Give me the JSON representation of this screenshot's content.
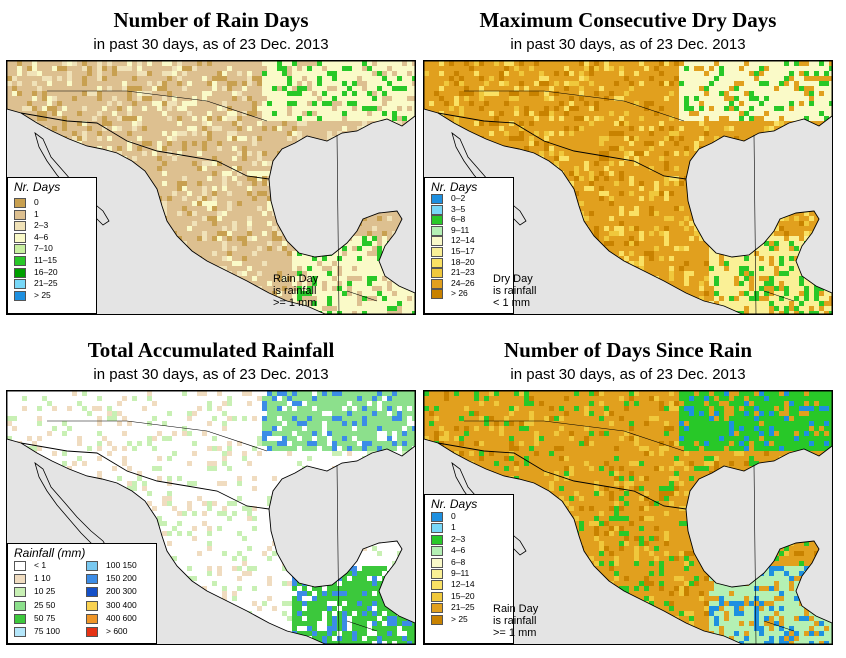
{
  "panels": [
    {
      "title": "Number of Rain Days",
      "subtitle": "in past 30 days, as of  23 Dec. 2013",
      "legend_title": "Nr. Days",
      "legend": [
        {
          "label": "0",
          "color": "#c8a050"
        },
        {
          "label": "1",
          "color": "#ddc090"
        },
        {
          "label": "2–3",
          "color": "#f0e2b8"
        },
        {
          "label": "4–6",
          "color": "#fafac8"
        },
        {
          "label": "7–10",
          "color": "#c8f0a0"
        },
        {
          "label": "11–15",
          "color": "#28c828"
        },
        {
          "label": "16–20",
          "color": "#00a000"
        },
        {
          "label": "21–25",
          "color": "#78d8f8"
        },
        {
          "label": "> 25",
          "color": "#1e90e0"
        }
      ],
      "note": [
        "Rain Day",
        "is rainfall",
        ">= 1 mm"
      ]
    },
    {
      "title": "Maximum Consecutive Dry Days",
      "subtitle": "in past 30 days, as of  23 Dec. 2013",
      "legend_title": "Nr. Days",
      "legend": [
        {
          "label": "0–2",
          "color": "#1e90e0"
        },
        {
          "label": "3–5",
          "color": "#78d8f8"
        },
        {
          "label": "6–8",
          "color": "#28c828"
        },
        {
          "label": "9–11",
          "color": "#b4f0b4"
        },
        {
          "label": "12–14",
          "color": "#fafac8"
        },
        {
          "label": "15–17",
          "color": "#faf096"
        },
        {
          "label": "18–20",
          "color": "#fae164"
        },
        {
          "label": "21–23",
          "color": "#f0c83c"
        },
        {
          "label": "24–26",
          "color": "#e1a01e"
        },
        {
          "label": "> 26",
          "color": "#c88200"
        }
      ],
      "note": [
        "Dry Day",
        "is rainfall",
        "< 1 mm"
      ]
    },
    {
      "title": "Total Accumulated Rainfall",
      "subtitle": "in past 30 days, as of  23 Dec. 2013",
      "legend_title": "Rainfall (mm)",
      "legend": [
        {
          "label": "< 1",
          "color": "#ffffff"
        },
        {
          "label": "1    10",
          "color": "#f0dcc0"
        },
        {
          "label": "10    25",
          "color": "#c8f0b4"
        },
        {
          "label": "25    50",
          "color": "#8ce08c"
        },
        {
          "label": "50    75",
          "color": "#3cc83c"
        },
        {
          "label": "75    100",
          "color": "#b4e6fa"
        },
        {
          "label": "100    150",
          "color": "#78c8f0"
        },
        {
          "label": "150    200",
          "color": "#3c8ce6"
        },
        {
          "label": "200    300",
          "color": "#1450c8"
        },
        {
          "label": "300    400",
          "color": "#fad250"
        },
        {
          "label": "400    600",
          "color": "#f09628"
        },
        {
          "label": "> 600",
          "color": "#e63214"
        }
      ],
      "note": []
    },
    {
      "title": "Number of Days Since Rain",
      "subtitle": "in past 30 days, as of  23 Dec. 2013",
      "legend_title": "Nr. Days",
      "legend": [
        {
          "label": "0",
          "color": "#1e90e0"
        },
        {
          "label": "1",
          "color": "#78d8f8"
        },
        {
          "label": "2–3",
          "color": "#28c828"
        },
        {
          "label": "4–6",
          "color": "#b4f0b4"
        },
        {
          "label": "6–8",
          "color": "#fafac8"
        },
        {
          "label": "9–11",
          "color": "#faf096"
        },
        {
          "label": "12–14",
          "color": "#fae164"
        },
        {
          "label": "15–20",
          "color": "#f0c83c"
        },
        {
          "label": "21–25",
          "color": "#e1a01e"
        },
        {
          "label": "> 25",
          "color": "#c88200"
        }
      ],
      "note": [
        "Rain Day",
        "is rainfall",
        ">= 1 mm"
      ]
    }
  ]
}
